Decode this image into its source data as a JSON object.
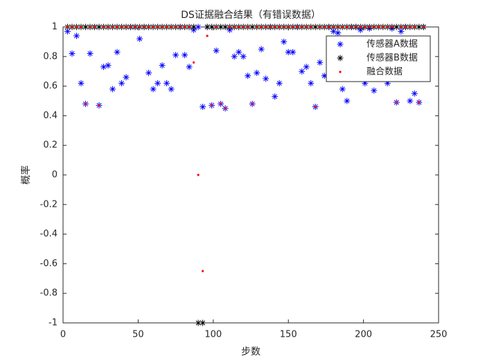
{
  "chart_data": {
    "type": "scatter",
    "title": "DS证据融合结果（有错误数据）",
    "xlabel": "步数",
    "ylabel": "概率",
    "x": [
      3,
      6,
      9,
      12,
      15,
      18,
      21,
      24,
      27,
      30,
      33,
      36,
      39,
      42,
      45,
      48,
      51,
      54,
      57,
      60,
      63,
      66,
      69,
      72,
      75,
      78,
      81,
      84,
      87,
      90,
      93,
      96,
      99,
      102,
      105,
      108,
      111,
      114,
      117,
      120,
      123,
      126,
      129,
      132,
      135,
      138,
      141,
      144,
      147,
      150,
      153,
      156,
      159,
      162,
      165,
      168,
      171,
      174,
      177,
      180,
      183,
      186,
      189,
      192,
      195,
      198,
      201,
      204,
      207,
      210,
      213,
      216,
      219,
      222,
      225,
      228,
      231,
      234,
      237,
      240
    ],
    "series": [
      {
        "name": "传感器A数据",
        "color": "#0000ff",
        "marker": "*",
        "values": [
          0.97,
          0.82,
          0.94,
          0.62,
          0.48,
          0.82,
          1,
          0.47,
          0.73,
          0.74,
          0.58,
          0.83,
          0.62,
          0.66,
          1,
          1,
          0.92,
          1,
          0.69,
          0.58,
          0.62,
          0.74,
          0.62,
          0.58,
          0.81,
          1,
          0.81,
          0.73,
          0.98,
          1,
          0.46,
          1,
          0.47,
          0.84,
          0.48,
          0.45,
          0.98,
          0.8,
          0.83,
          0.8,
          0.67,
          0.48,
          0.69,
          0.85,
          0.65,
          1,
          0.53,
          0.62,
          0.9,
          0.83,
          0.83,
          1,
          0.7,
          0.73,
          0.62,
          0.46,
          0.76,
          0.67,
          1,
          0.97,
          0.96,
          0.58,
          0.5,
          1,
          1,
          0.98,
          0.62,
          0.99,
          0.57,
          0.7,
          0.72,
          0.62,
          0.99,
          0.49,
          0.97,
          1,
          0.5,
          0.55,
          0.49,
          1
        ]
      },
      {
        "name": "传感器B数据",
        "color": "#000000",
        "marker": "*",
        "values": [
          1,
          1,
          1,
          1,
          1,
          1,
          1,
          1,
          1,
          1,
          1,
          1,
          1,
          1,
          1,
          1,
          1,
          1,
          1,
          1,
          1,
          1,
          1,
          1,
          1,
          1,
          1,
          1,
          1,
          -1,
          -1,
          1,
          1,
          1,
          1,
          1,
          1,
          1,
          1,
          1,
          1,
          1,
          1,
          1,
          1,
          1,
          1,
          1,
          1,
          1,
          1,
          1,
          1,
          1,
          1,
          1,
          1,
          1,
          1,
          1,
          1,
          1,
          1,
          1,
          1,
          1,
          1,
          1,
          1,
          1,
          1,
          1,
          1,
          1,
          1,
          1,
          1,
          1,
          1,
          1
        ]
      },
      {
        "name": "融合数据",
        "color": "#ff0000",
        "marker": ".",
        "values": [
          1,
          1,
          1,
          1,
          0.48,
          1,
          1,
          0.47,
          1,
          1,
          1,
          1,
          1,
          1,
          1,
          1,
          1,
          1,
          1,
          1,
          1,
          1,
          1,
          1,
          1,
          1,
          1,
          1,
          0.76,
          0,
          -0.65,
          0.94,
          0.47,
          1,
          0.48,
          0.45,
          1,
          1,
          1,
          1,
          1,
          0.48,
          1,
          1,
          1,
          1,
          1,
          1,
          1,
          1,
          1,
          1,
          1,
          1,
          1,
          0.46,
          1,
          1,
          1,
          1,
          1,
          1,
          1,
          1,
          1,
          1,
          1,
          1,
          1,
          1,
          1,
          1,
          1,
          0.49,
          1,
          1,
          1,
          1,
          0.49,
          1
        ]
      }
    ],
    "xlim": [
      0,
      250
    ],
    "xticks": [
      0,
      50,
      100,
      150,
      200,
      250
    ],
    "ylim": [
      -1,
      1
    ],
    "yticks": [
      -1,
      -0.8,
      -0.6,
      -0.4,
      -0.2,
      0,
      0.2,
      0.4,
      0.6,
      0.8,
      1
    ],
    "legend": "northeast",
    "box": true
  }
}
